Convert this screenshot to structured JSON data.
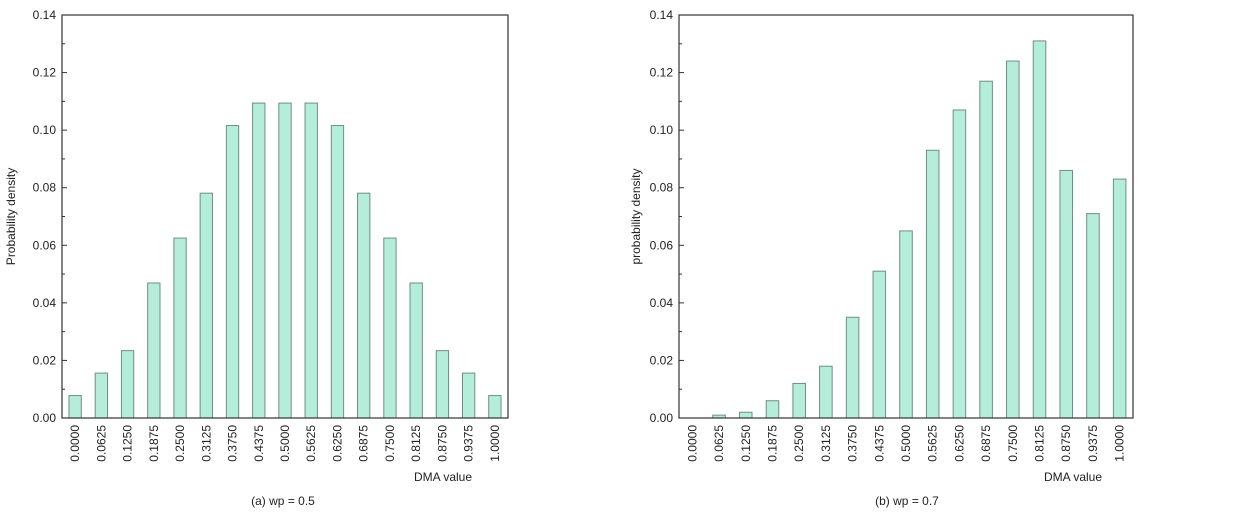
{
  "colors": {
    "bar_fill": "#b5eddb",
    "bar_stroke": "#6f8f84",
    "axis": "#333333"
  },
  "chart_data": [
    {
      "type": "bar",
      "caption": "(a) wp = 0.5",
      "xlabel": "DMA value",
      "ylabel": "Probability density",
      "ylim": [
        0,
        0.14
      ],
      "yticks": [
        "0.00",
        "0.02",
        "0.04",
        "0.06",
        "0.08",
        "0.10",
        "0.12",
        "0.14"
      ],
      "categories": [
        "0.0000",
        "0.0625",
        "0.1250",
        "0.1875",
        "0.2500",
        "0.3125",
        "0.3750",
        "0.4375",
        "0.5000",
        "0.5625",
        "0.6250",
        "0.6875",
        "0.7500",
        "0.8125",
        "0.8750",
        "0.9375",
        "1.0000"
      ],
      "values": [
        0.0078,
        0.0156,
        0.0234,
        0.0469,
        0.0625,
        0.0781,
        0.1016,
        0.1094,
        0.1094,
        0.1094,
        0.1016,
        0.0781,
        0.0625,
        0.0469,
        0.0234,
        0.0156,
        0.0078
      ]
    },
    {
      "type": "bar",
      "caption": "(b) wp = 0.7",
      "xlabel": "DMA value",
      "ylabel": "probability density",
      "ylim": [
        0,
        0.14
      ],
      "yticks": [
        "0.00",
        "0.02",
        "0.04",
        "0.06",
        "0.08",
        "0.10",
        "0.12",
        "0.14"
      ],
      "categories": [
        "0.0000",
        "0.0625",
        "0.1250",
        "0.1875",
        "0.2500",
        "0.3125",
        "0.3750",
        "0.4375",
        "0.5000",
        "0.5625",
        "0.6250",
        "0.6875",
        "0.7500",
        "0.8125",
        "0.8750",
        "0.9375",
        "1.0000"
      ],
      "values": [
        0.0,
        0.001,
        0.002,
        0.006,
        0.012,
        0.018,
        0.035,
        0.051,
        0.065,
        0.093,
        0.107,
        0.117,
        0.124,
        0.131,
        0.086,
        0.071,
        0.083
      ]
    }
  ]
}
